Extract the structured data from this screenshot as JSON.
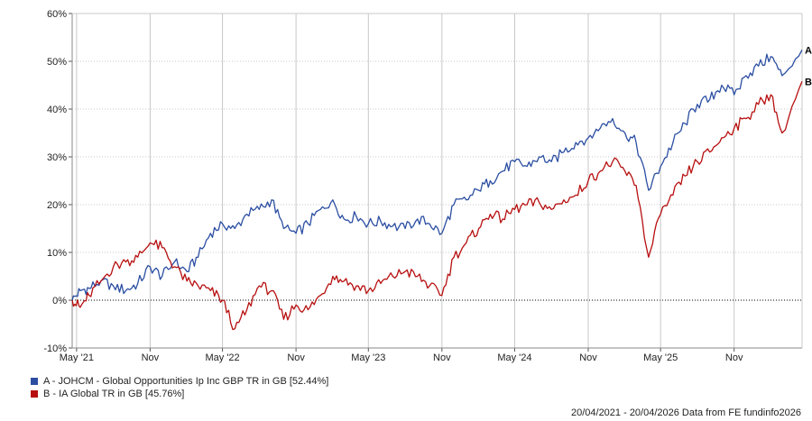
{
  "chart_data": {
    "type": "line",
    "y_unit": "%",
    "ylim": [
      -10,
      60
    ],
    "y_ticks": [
      -10,
      0,
      10,
      20,
      30,
      40,
      50,
      60
    ],
    "y_tick_labels": [
      "-10%",
      "0%",
      "10%",
      "20%",
      "30%",
      "40%",
      "50%",
      "60%"
    ],
    "x_range": [
      "2021-04-20",
      "2026-04-20"
    ],
    "x_ticks": [
      {
        "label": "May '21",
        "date": "2021-05-01"
      },
      {
        "label": "Nov",
        "date": "2021-11-01"
      },
      {
        "label": "May '22",
        "date": "2022-05-01"
      },
      {
        "label": "Nov",
        "date": "2022-11-01"
      },
      {
        "label": "May '23",
        "date": "2023-05-01"
      },
      {
        "label": "Nov",
        "date": "2023-11-01"
      },
      {
        "label": "May '24",
        "date": "2024-05-01"
      },
      {
        "label": "Nov",
        "date": "2024-11-01"
      },
      {
        "label": "May '25",
        "date": "2025-05-01"
      },
      {
        "label": "Nov",
        "date": "2025-11-01"
      }
    ],
    "grid": true,
    "zero_line": "dotted",
    "series": [
      {
        "name": "A - JOHCM - Global Opportunities Ip Inc GBP TR in GB [52.44%]",
        "end_label": "A",
        "color": "#2b4ea2",
        "points": [
          [
            "2021-04-20",
            0
          ],
          [
            "2021-05-10",
            2
          ],
          [
            "2021-06-01",
            2.5
          ],
          [
            "2021-07-01",
            4
          ],
          [
            "2021-08-01",
            3
          ],
          [
            "2021-09-01",
            2
          ],
          [
            "2021-10-01",
            3.5
          ],
          [
            "2021-11-01",
            7
          ],
          [
            "2021-12-01",
            5
          ],
          [
            "2022-01-01",
            8
          ],
          [
            "2022-02-01",
            6
          ],
          [
            "2022-03-01",
            9
          ],
          [
            "2022-04-01",
            14
          ],
          [
            "2022-05-01",
            16
          ],
          [
            "2022-06-01",
            15
          ],
          [
            "2022-07-01",
            18
          ],
          [
            "2022-08-01",
            19
          ],
          [
            "2022-09-01",
            21
          ],
          [
            "2022-10-01",
            15
          ],
          [
            "2022-11-01",
            14
          ],
          [
            "2022-12-01",
            16
          ],
          [
            "2023-01-01",
            19
          ],
          [
            "2023-02-01",
            21
          ],
          [
            "2023-03-01",
            17
          ],
          [
            "2023-04-01",
            17.5
          ],
          [
            "2023-05-01",
            16
          ],
          [
            "2023-06-01",
            16.5
          ],
          [
            "2023-07-01",
            15.5
          ],
          [
            "2023-08-01",
            15
          ],
          [
            "2023-09-01",
            17
          ],
          [
            "2023-10-01",
            16
          ],
          [
            "2023-11-01",
            14
          ],
          [
            "2023-12-01",
            20
          ],
          [
            "2024-01-01",
            21
          ],
          [
            "2024-02-01",
            23
          ],
          [
            "2024-03-01",
            25
          ],
          [
            "2024-04-01",
            27
          ],
          [
            "2024-05-01",
            29
          ],
          [
            "2024-06-01",
            28
          ],
          [
            "2024-07-01",
            30
          ],
          [
            "2024-08-01",
            29
          ],
          [
            "2024-09-01",
            31
          ],
          [
            "2024-10-01",
            33
          ],
          [
            "2024-11-01",
            34
          ],
          [
            "2024-12-01",
            36
          ],
          [
            "2025-01-01",
            38
          ],
          [
            "2025-02-01",
            35
          ],
          [
            "2025-03-01",
            33
          ],
          [
            "2025-04-01",
            23
          ],
          [
            "2025-05-01",
            28
          ],
          [
            "2025-06-01",
            33
          ],
          [
            "2025-07-01",
            37
          ],
          [
            "2025-08-01",
            41
          ],
          [
            "2025-09-01",
            42
          ],
          [
            "2025-10-01",
            45
          ],
          [
            "2025-11-01",
            43
          ],
          [
            "2025-12-01",
            47
          ],
          [
            "2026-01-01",
            49
          ],
          [
            "2026-02-01",
            51
          ],
          [
            "2026-03-01",
            47
          ],
          [
            "2026-04-20",
            52.4
          ]
        ]
      },
      {
        "name": "B - IA Global TR in GB [45.76%]",
        "end_label": "B",
        "color": "#b70f0f",
        "points": [
          [
            "2021-04-20",
            0
          ],
          [
            "2021-05-10",
            -1.5
          ],
          [
            "2021-06-01",
            1
          ],
          [
            "2021-07-01",
            4
          ],
          [
            "2021-08-01",
            7
          ],
          [
            "2021-09-01",
            8
          ],
          [
            "2021-10-01",
            9
          ],
          [
            "2021-11-01",
            12
          ],
          [
            "2021-12-01",
            11
          ],
          [
            "2022-01-01",
            7
          ],
          [
            "2022-02-01",
            4
          ],
          [
            "2022-03-01",
            3
          ],
          [
            "2022-04-01",
            2
          ],
          [
            "2022-05-01",
            0
          ],
          [
            "2022-06-01",
            -6
          ],
          [
            "2022-07-01",
            -2
          ],
          [
            "2022-08-01",
            3
          ],
          [
            "2022-09-01",
            2
          ],
          [
            "2022-10-01",
            -4
          ],
          [
            "2022-11-01",
            -1
          ],
          [
            "2022-12-01",
            -2
          ],
          [
            "2023-01-01",
            1
          ],
          [
            "2023-02-01",
            5
          ],
          [
            "2023-03-01",
            4
          ],
          [
            "2023-04-01",
            3
          ],
          [
            "2023-05-01",
            2
          ],
          [
            "2023-06-01",
            3.5
          ],
          [
            "2023-07-01",
            5
          ],
          [
            "2023-08-01",
            6
          ],
          [
            "2023-09-01",
            5
          ],
          [
            "2023-10-01",
            3
          ],
          [
            "2023-11-01",
            1
          ],
          [
            "2023-12-01",
            9
          ],
          [
            "2024-01-01",
            12
          ],
          [
            "2024-02-01",
            15
          ],
          [
            "2024-03-01",
            18
          ],
          [
            "2024-04-01",
            17
          ],
          [
            "2024-05-01",
            19
          ],
          [
            "2024-06-01",
            20
          ],
          [
            "2024-07-01",
            20.5
          ],
          [
            "2024-08-01",
            19
          ],
          [
            "2024-09-01",
            21
          ],
          [
            "2024-10-01",
            22
          ],
          [
            "2024-11-01",
            25
          ],
          [
            "2024-12-01",
            27
          ],
          [
            "2025-01-01",
            29
          ],
          [
            "2025-02-01",
            27
          ],
          [
            "2025-03-01",
            24
          ],
          [
            "2025-04-01",
            9
          ],
          [
            "2025-05-01",
            18
          ],
          [
            "2025-06-01",
            22
          ],
          [
            "2025-07-01",
            26
          ],
          [
            "2025-08-01",
            29
          ],
          [
            "2025-09-01",
            31
          ],
          [
            "2025-10-01",
            34
          ],
          [
            "2025-11-01",
            36
          ],
          [
            "2025-12-01",
            38
          ],
          [
            "2026-01-01",
            41
          ],
          [
            "2026-02-01",
            43
          ],
          [
            "2026-03-01",
            35
          ],
          [
            "2026-04-20",
            45.8
          ]
        ]
      }
    ]
  },
  "legend": [
    {
      "label": "A - JOHCM - Global Opportunities Ip Inc GBP TR in GB [52.44%]",
      "color": "#2b4ea2"
    },
    {
      "label": "B - IA Global TR in GB [45.76%]",
      "color": "#b70f0f"
    }
  ],
  "footer": "20/04/2021 - 20/04/2026 Data from FE fundinfo2026"
}
